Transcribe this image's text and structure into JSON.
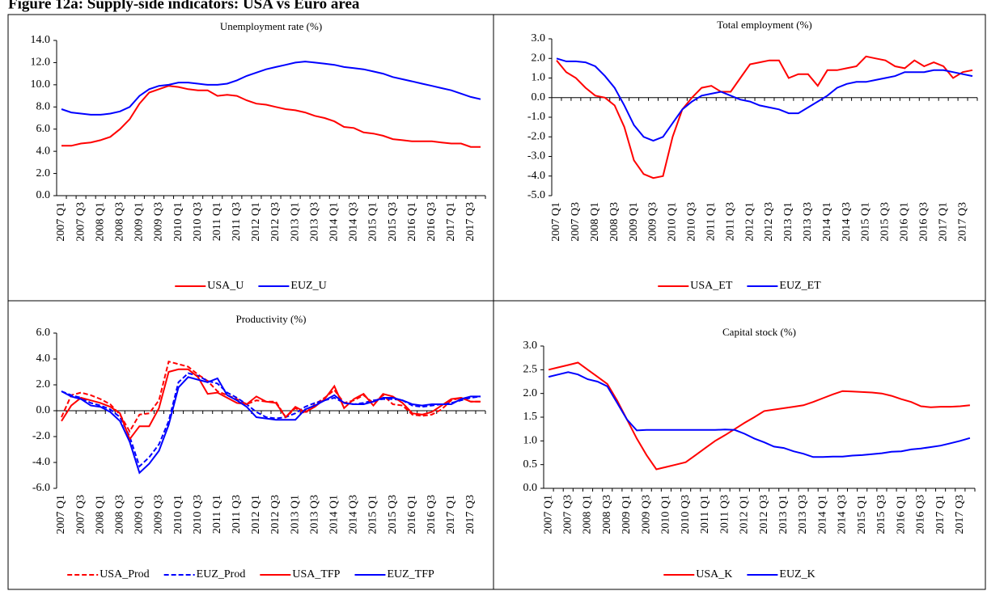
{
  "title": "Figure 12a: Supply-side indicators: USA vs Euro area",
  "chart_data": [
    {
      "type": "line",
      "title": "Unemployment rate (%)",
      "categories": [
        "2007 Q1",
        null,
        "2007 Q3",
        null,
        "2008 Q1",
        null,
        "2008 Q3",
        null,
        "2009 Q1",
        null,
        "2009 Q3",
        null,
        "2010 Q1",
        null,
        "2010 Q3",
        null,
        "2011 Q1",
        null,
        "2011 Q3",
        null,
        "2012 Q1",
        null,
        "2012 Q3",
        null,
        "2013 Q1",
        null,
        "2013 Q3",
        null,
        "2014 Q1",
        null,
        "2014 Q3",
        null,
        "2015 Q1",
        null,
        "2015 Q3",
        null,
        "2016 Q1",
        null,
        "2016 Q3",
        null,
        "2017 Q1",
        null,
        "2017 Q3",
        null
      ],
      "series": [
        {
          "name": "USA_U",
          "color": "#ff0000",
          "dashed": false,
          "values": [
            4.5,
            4.5,
            4.7,
            4.8,
            5.0,
            5.3,
            6.0,
            6.9,
            8.3,
            9.3,
            9.6,
            9.9,
            9.8,
            9.6,
            9.5,
            9.5,
            9.0,
            9.1,
            9.0,
            8.6,
            8.3,
            8.2,
            8.0,
            7.8,
            7.7,
            7.5,
            7.2,
            7.0,
            6.7,
            6.2,
            6.1,
            5.7,
            5.6,
            5.4,
            5.1,
            5.0,
            4.9,
            4.9,
            4.9,
            4.8,
            4.7,
            4.7,
            4.4,
            4.4
          ]
        },
        {
          "name": "EUZ_U",
          "color": "#0000ff",
          "dashed": false,
          "values": [
            7.8,
            7.5,
            7.4,
            7.3,
            7.3,
            7.4,
            7.6,
            8.0,
            9.0,
            9.6,
            9.9,
            10.0,
            10.2,
            10.2,
            10.1,
            10.0,
            10.0,
            10.1,
            10.4,
            10.8,
            11.1,
            11.4,
            11.6,
            11.8,
            12.0,
            12.1,
            12.0,
            11.9,
            11.8,
            11.6,
            11.5,
            11.4,
            11.2,
            11.0,
            10.7,
            10.5,
            10.3,
            10.1,
            9.9,
            9.7,
            9.5,
            9.2,
            8.9,
            8.7
          ]
        }
      ],
      "ylim": [
        0,
        14
      ],
      "yticks": [
        {
          "value": 0,
          "label": "0.0"
        },
        {
          "value": 2,
          "label": "2.0"
        },
        {
          "value": 4,
          "label": "4.0"
        },
        {
          "value": 6,
          "label": "6.0"
        },
        {
          "value": 8,
          "label": "8.0"
        },
        {
          "value": 10,
          "label": "10.0"
        },
        {
          "value": 12,
          "label": "12.0"
        },
        {
          "value": 14,
          "label": "14.0"
        }
      ]
    },
    {
      "type": "line",
      "title": "Total employment (%)",
      "categories": [
        "2007 Q1",
        null,
        "2007 Q3",
        null,
        "2008 Q1",
        null,
        "2008 Q3",
        null,
        "2009 Q1",
        null,
        "2009 Q3",
        null,
        "2010 Q1",
        null,
        "2010 Q3",
        null,
        "2011 Q1",
        null,
        "2011 Q3",
        null,
        "2012 Q1",
        null,
        "2012 Q3",
        null,
        "2013 Q1",
        null,
        "2013 Q3",
        null,
        "2014 Q1",
        null,
        "2014 Q3",
        null,
        "2015 Q1",
        null,
        "2015 Q3",
        null,
        "2016 Q1",
        null,
        "2016 Q3",
        null,
        "2017 Q1",
        null,
        "2017 Q3",
        null
      ],
      "series": [
        {
          "name": "USA_ET",
          "color": "#ff0000",
          "dashed": false,
          "values": [
            1.9,
            1.3,
            1.0,
            0.5,
            0.1,
            0.0,
            -0.4,
            -1.5,
            -3.2,
            -3.9,
            -4.1,
            -4.0,
            -2.0,
            -0.6,
            0.0,
            0.5,
            0.6,
            0.3,
            0.3,
            1.0,
            1.7,
            1.8,
            1.9,
            1.9,
            1.0,
            1.2,
            1.2,
            0.6,
            1.4,
            1.4,
            1.5,
            1.6,
            2.1,
            2.0,
            1.9,
            1.6,
            1.5,
            1.9,
            1.6,
            1.8,
            1.6,
            1.0,
            1.3,
            1.4
          ]
        },
        {
          "name": "EUZ_ET",
          "color": "#0000ff",
          "dashed": false,
          "values": [
            2.0,
            1.85,
            1.85,
            1.8,
            1.6,
            1.1,
            0.5,
            -0.4,
            -1.4,
            -2.0,
            -2.2,
            -2.0,
            -1.3,
            -0.6,
            -0.2,
            0.1,
            0.2,
            0.3,
            0.1,
            -0.1,
            -0.2,
            -0.4,
            -0.5,
            -0.6,
            -0.8,
            -0.8,
            -0.5,
            -0.2,
            0.1,
            0.5,
            0.7,
            0.8,
            0.8,
            0.9,
            1.0,
            1.1,
            1.3,
            1.3,
            1.3,
            1.4,
            1.4,
            1.3,
            1.2,
            1.1
          ]
        }
      ],
      "ylim": [
        -5,
        3
      ],
      "yticks": [
        {
          "value": -5,
          "label": "-5.0"
        },
        {
          "value": -4,
          "label": "-4.0"
        },
        {
          "value": -3,
          "label": "-3.0"
        },
        {
          "value": -2,
          "label": "-2.0"
        },
        {
          "value": -1,
          "label": "-1.0"
        },
        {
          "value": 0,
          "label": "0.0"
        },
        {
          "value": 1,
          "label": "1.0"
        },
        {
          "value": 2,
          "label": "2.0"
        },
        {
          "value": 3,
          "label": "3.0"
        }
      ]
    },
    {
      "type": "line",
      "title": "Productivity (%)",
      "categories": [
        "2007 Q1",
        null,
        "2007 Q3",
        null,
        "2008 Q1",
        null,
        "2008 Q3",
        null,
        "2009 Q1",
        null,
        "2009 Q3",
        null,
        "2010 Q1",
        null,
        "2010 Q3",
        null,
        "2011 Q1",
        null,
        "2011 Q3",
        null,
        "2012 Q1",
        null,
        "2012 Q3",
        null,
        "2013 Q1",
        null,
        "2013 Q3",
        null,
        "2014 Q1",
        null,
        "2014 Q3",
        null,
        "2015 Q1",
        null,
        "2015 Q3",
        null,
        "2016 Q1",
        null,
        "2016 Q3",
        null,
        "2017 Q1",
        null,
        "2017 Q3",
        null
      ],
      "series": [
        {
          "name": "USA_Prod",
          "color": "#ff0000",
          "dashed": true,
          "values": [
            -0.5,
            1.2,
            1.4,
            1.2,
            0.9,
            0.5,
            -0.3,
            -1.6,
            -0.3,
            -0.2,
            0.8,
            3.8,
            3.6,
            3.4,
            2.8,
            2.3,
            1.5,
            1.2,
            0.9,
            0.5,
            0.8,
            0.7,
            0.7,
            -0.5,
            0.2,
            -0.2,
            0.5,
            1.0,
            1.6,
            0.6,
            0.8,
            1.2,
            0.6,
            1.2,
            0.5,
            0.4,
            -0.3,
            -0.4,
            -0.3,
            0.1,
            0.8,
            1.0,
            0.7,
            0.7
          ]
        },
        {
          "name": "EUZ_Prod",
          "color": "#0000ff",
          "dashed": true,
          "values": [
            1.5,
            1.2,
            1.0,
            0.6,
            0.4,
            0.1,
            -0.5,
            -2.0,
            -4.3,
            -3.6,
            -2.6,
            -0.8,
            2.2,
            2.9,
            2.7,
            2.3,
            2.1,
            1.4,
            1.0,
            0.5,
            -0.1,
            -0.5,
            -0.6,
            -0.5,
            -0.2,
            0.3,
            0.6,
            0.8,
            1.0,
            0.6,
            0.5,
            0.6,
            0.8,
            0.9,
            0.9,
            0.8,
            0.4,
            0.3,
            0.4,
            0.5,
            0.6,
            0.8,
            1.0,
            1.1
          ]
        },
        {
          "name": "USA_TFP",
          "color": "#ff0000",
          "dashed": false,
          "values": [
            -0.8,
            0.4,
            1.0,
            0.8,
            0.6,
            0.3,
            -0.2,
            -2.2,
            -1.2,
            -1.2,
            0.2,
            3.0,
            3.2,
            3.2,
            2.6,
            1.3,
            1.4,
            1.0,
            0.6,
            0.5,
            1.1,
            0.7,
            0.6,
            -0.5,
            0.3,
            -0.1,
            0.3,
            0.9,
            1.9,
            0.2,
            0.9,
            1.3,
            0.4,
            1.3,
            1.1,
            0.6,
            -0.2,
            -0.3,
            -0.1,
            0.4,
            0.9,
            1.0,
            0.7,
            0.7
          ]
        },
        {
          "name": "EUZ_TFP",
          "color": "#0000ff",
          "dashed": false,
          "values": [
            1.5,
            1.1,
            0.9,
            0.4,
            0.3,
            -0.1,
            -0.8,
            -2.4,
            -4.8,
            -4.1,
            -3.1,
            -1.1,
            1.8,
            2.6,
            2.4,
            2.2,
            2.5,
            1.2,
            0.8,
            0.3,
            -0.5,
            -0.6,
            -0.7,
            -0.7,
            -0.7,
            0.1,
            0.4,
            0.8,
            1.2,
            0.6,
            0.5,
            0.5,
            0.7,
            1.0,
            1.0,
            0.8,
            0.5,
            0.4,
            0.5,
            0.5,
            0.5,
            0.9,
            1.1,
            1.1
          ]
        }
      ],
      "ylim": [
        -6,
        6
      ],
      "yticks": [
        {
          "value": -6,
          "label": "-6.0"
        },
        {
          "value": -4,
          "label": "-4.0"
        },
        {
          "value": -2,
          "label": "-2.0"
        },
        {
          "value": 0,
          "label": "0.0"
        },
        {
          "value": 2,
          "label": "2.0"
        },
        {
          "value": 4,
          "label": "4.0"
        },
        {
          "value": 6,
          "label": "6.0"
        }
      ]
    },
    {
      "type": "line",
      "title": "Capital stock (%)",
      "categories": [
        "2007 Q1",
        null,
        "2007 Q3",
        null,
        "2008 Q1",
        null,
        "2008 Q3",
        null,
        "2009 Q1",
        null,
        "2009 Q3",
        null,
        "2010 Q1",
        null,
        "2010 Q3",
        null,
        "2011 Q1",
        null,
        "2011 Q3",
        null,
        "2012 Q1",
        null,
        "2012 Q3",
        null,
        "2013 Q1",
        null,
        "2013 Q3",
        null,
        "2014 Q1",
        null,
        "2014 Q3",
        null,
        "2015 Q1",
        null,
        "2015 Q3",
        null,
        "2016 Q1",
        null,
        "2016 Q3",
        null,
        "2017 Q1",
        null,
        "2017 Q3",
        null
      ],
      "series": [
        {
          "name": "USA_K",
          "color": "#ff0000",
          "dashed": false,
          "values": [
            2.5,
            2.55,
            2.6,
            2.65,
            2.5,
            2.35,
            2.2,
            1.85,
            1.45,
            1.05,
            0.7,
            0.4,
            0.45,
            0.5,
            0.55,
            0.7,
            0.85,
            1.0,
            1.12,
            1.25,
            1.38,
            1.5,
            1.63,
            1.66,
            1.69,
            1.72,
            1.75,
            1.82,
            1.9,
            1.98,
            2.05,
            2.04,
            2.03,
            2.02,
            2.0,
            1.95,
            1.88,
            1.82,
            1.73,
            1.71,
            1.72,
            1.72,
            1.73,
            1.75
          ]
        },
        {
          "name": "EUZ_K",
          "color": "#0000ff",
          "dashed": false,
          "values": [
            2.35,
            2.4,
            2.45,
            2.4,
            2.3,
            2.25,
            2.15,
            1.8,
            1.45,
            1.22,
            1.23,
            1.23,
            1.23,
            1.23,
            1.23,
            1.23,
            1.23,
            1.23,
            1.24,
            1.23,
            1.15,
            1.05,
            0.97,
            0.88,
            0.85,
            0.78,
            0.73,
            0.66,
            0.66,
            0.67,
            0.67,
            0.69,
            0.7,
            0.72,
            0.74,
            0.77,
            0.78,
            0.82,
            0.84,
            0.87,
            0.9,
            0.95,
            1.0,
            1.06
          ]
        }
      ],
      "ylim": [
        0,
        3
      ],
      "yticks": [
        {
          "value": 0,
          "label": "0.0"
        },
        {
          "value": 0.5,
          "label": "0.5"
        },
        {
          "value": 1,
          "label": "1.0"
        },
        {
          "value": 1.5,
          "label": "1.5"
        },
        {
          "value": 2,
          "label": "2.0"
        },
        {
          "value": 2.5,
          "label": "2.5"
        },
        {
          "value": 3,
          "label": "3.0"
        }
      ]
    }
  ]
}
